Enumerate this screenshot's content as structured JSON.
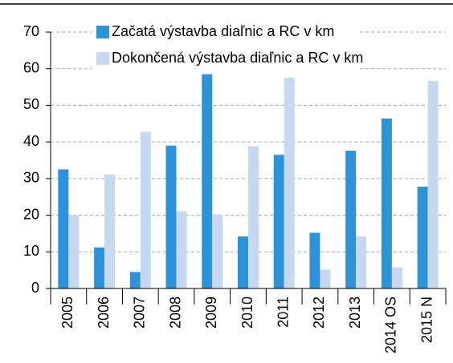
{
  "chart_data": {
    "type": "bar",
    "categories": [
      "2005",
      "2006",
      "2007",
      "2008",
      "2009",
      "2010",
      "2011",
      "2012",
      "2013",
      "2014 OS",
      "2015 N"
    ],
    "series": [
      {
        "name": "Začatá výstavba diaľnic a RC v km",
        "color": "#2e92d8",
        "values": [
          32.5,
          11.2,
          4.5,
          39,
          58.5,
          14.2,
          36.5,
          15.2,
          37.6,
          46.4,
          27.8
        ]
      },
      {
        "name": "Dokončená výstavba diaľnic a RC v km",
        "color": "#c6d9f0",
        "values": [
          20,
          31.1,
          42.8,
          21.1,
          20.2,
          38.8,
          57.5,
          5.1,
          14.2,
          5.8,
          56.7
        ]
      }
    ],
    "ylim": [
      0,
      70
    ],
    "yticks": [
      0,
      10,
      20,
      30,
      40,
      50,
      60,
      70
    ],
    "grid": true,
    "legend": "top"
  }
}
